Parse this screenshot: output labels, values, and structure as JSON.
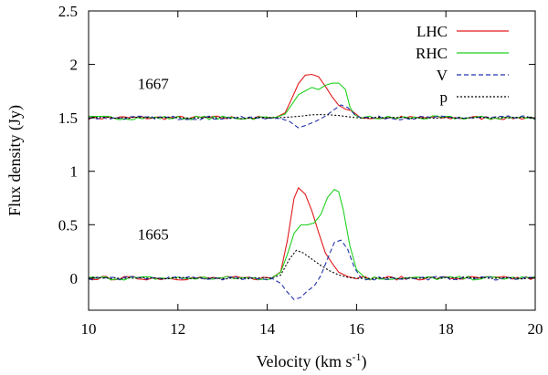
{
  "chart_data": {
    "type": "line",
    "title": "",
    "xlabel": "Velocity (km s",
    "xlabel_sup": "-1",
    "xlabel_close": ")",
    "ylabel": "Flux density  (Jy)",
    "xlim": [
      10,
      20
    ],
    "ylim": [
      -0.3,
      2.5
    ],
    "xticks": [
      10,
      12,
      14,
      16,
      18,
      20
    ],
    "yticks": [
      0,
      0.5,
      1,
      1.5,
      2,
      2.5
    ],
    "xtick_labels": [
      "10",
      "12",
      "14",
      "16",
      "18",
      "20"
    ],
    "ytick_labels": [
      "0",
      "0.5",
      "1",
      "1.5",
      "2",
      "2.5"
    ],
    "panel_labels": [
      {
        "text": "1667",
        "x": 11.1,
        "y": 1.77
      },
      {
        "text": "1665",
        "x": 11.1,
        "y": 0.36
      }
    ],
    "legend": {
      "position": "top-right"
    },
    "series": [
      {
        "name": "LHC",
        "color": "#e41a1c",
        "dash": "solid",
        "group": "1667",
        "x": [
          14.0,
          14.2,
          14.4,
          14.55,
          14.7,
          14.85,
          15.0,
          15.15,
          15.3,
          15.45,
          15.6,
          15.75,
          15.9,
          16.0,
          16.1
        ],
        "values": [
          1.5,
          1.51,
          1.55,
          1.68,
          1.82,
          1.9,
          1.91,
          1.88,
          1.8,
          1.7,
          1.62,
          1.58,
          1.56,
          1.53,
          1.5
        ]
      },
      {
        "name": "RHC",
        "color": "#1fd11f",
        "dash": "solid",
        "group": "1667",
        "x": [
          14.0,
          14.2,
          14.4,
          14.55,
          14.7,
          14.85,
          15.0,
          15.15,
          15.3,
          15.45,
          15.6,
          15.75,
          15.85,
          15.95,
          16.1
        ],
        "values": [
          1.5,
          1.51,
          1.54,
          1.62,
          1.72,
          1.75,
          1.78,
          1.77,
          1.8,
          1.82,
          1.82,
          1.76,
          1.6,
          1.53,
          1.5
        ]
      },
      {
        "name": "V",
        "color": "#2233aa",
        "dash": "5,3",
        "group": "1667",
        "x": [
          14.0,
          14.3,
          14.5,
          14.7,
          14.9,
          15.1,
          15.3,
          15.5,
          15.65,
          15.8,
          15.95,
          16.1
        ],
        "values": [
          1.5,
          1.49,
          1.46,
          1.41,
          1.43,
          1.47,
          1.52,
          1.58,
          1.62,
          1.6,
          1.54,
          1.5
        ]
      },
      {
        "name": "p",
        "color": "#000000",
        "dash": "2,2",
        "group": "1667",
        "x": [
          14.0,
          14.3,
          14.6,
          14.8,
          15.0,
          15.2,
          15.4,
          15.6,
          15.8,
          16.0,
          16.2
        ],
        "values": [
          1.5,
          1.5,
          1.51,
          1.52,
          1.53,
          1.53,
          1.53,
          1.52,
          1.51,
          1.5,
          1.5
        ]
      },
      {
        "name": "LHC",
        "color": "#e41a1c",
        "dash": "solid",
        "group": "1665",
        "x": [
          14.1,
          14.3,
          14.45,
          14.6,
          14.7,
          14.85,
          15.0,
          15.15,
          15.3,
          15.45,
          15.6,
          15.8,
          16.0
        ],
        "values": [
          0.0,
          0.06,
          0.35,
          0.75,
          0.85,
          0.79,
          0.63,
          0.43,
          0.24,
          0.14,
          0.06,
          0.02,
          0.0
        ]
      },
      {
        "name": "RHC",
        "color": "#1fd11f",
        "dash": "solid",
        "group": "1665",
        "x": [
          14.1,
          14.3,
          14.45,
          14.6,
          14.75,
          14.9,
          15.05,
          15.2,
          15.35,
          15.5,
          15.6,
          15.7,
          15.85,
          16.0,
          16.2
        ],
        "values": [
          0.0,
          0.05,
          0.22,
          0.42,
          0.5,
          0.5,
          0.52,
          0.6,
          0.76,
          0.83,
          0.81,
          0.65,
          0.3,
          0.08,
          0.0
        ]
      },
      {
        "name": "V",
        "color": "#2233aa",
        "dash": "5,3",
        "group": "1665",
        "x": [
          14.1,
          14.3,
          14.45,
          14.6,
          14.75,
          14.9,
          15.05,
          15.2,
          15.35,
          15.5,
          15.65,
          15.8,
          15.95,
          16.1
        ],
        "values": [
          0.0,
          -0.05,
          -0.13,
          -0.2,
          -0.18,
          -0.12,
          -0.08,
          0.02,
          0.18,
          0.33,
          0.35,
          0.27,
          0.1,
          0.0
        ]
      },
      {
        "name": "p",
        "color": "#000000",
        "dash": "2,2",
        "group": "1665",
        "x": [
          14.1,
          14.3,
          14.5,
          14.65,
          14.8,
          15.0,
          15.2,
          15.4,
          15.6,
          15.8,
          16.0
        ],
        "values": [
          0.0,
          0.03,
          0.18,
          0.26,
          0.24,
          0.18,
          0.12,
          0.07,
          0.03,
          0.01,
          0.0
        ]
      }
    ],
    "noise": {
      "baselines": [
        1.5,
        0.0
      ],
      "amplitude": 0.018,
      "x_step": 0.1
    }
  },
  "legend_items": [
    {
      "label": "LHC",
      "color": "#e41a1c",
      "dash": "solid"
    },
    {
      "label": "RHC",
      "color": "#1fd11f",
      "dash": "solid"
    },
    {
      "label": "V",
      "color": "#2233aa",
      "dash": "5,3"
    },
    {
      "label": "p",
      "color": "#000000",
      "dash": "2,2"
    }
  ]
}
